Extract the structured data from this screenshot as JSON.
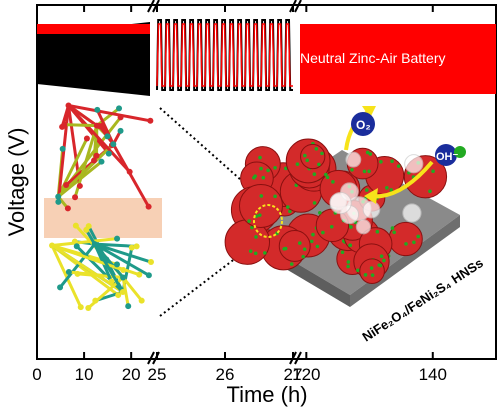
{
  "chart_data": {
    "type": "line",
    "title": "",
    "xlabel": "Time (h)",
    "ylabel": "Voltage (V)",
    "x_ticks": [
      {
        "segment": 0,
        "label": "0",
        "value": 0
      },
      {
        "segment": 0,
        "label": "10",
        "value": 10
      },
      {
        "segment": 0,
        "label": "20",
        "value": 20
      },
      {
        "segment": 1,
        "label": "25",
        "value": 25
      },
      {
        "segment": 1,
        "label": "26",
        "value": 26
      },
      {
        "segment": 1,
        "label": "27",
        "value": 27
      },
      {
        "segment": 2,
        "label": "120",
        "value": 120
      },
      {
        "segment": 2,
        "label": "140",
        "value": 140
      }
    ],
    "segments": [
      {
        "range": [
          0,
          24
        ],
        "style": "dense-cycling",
        "color": "#000000"
      },
      {
        "range": [
          25,
          27
        ],
        "style": "resolved-cycling",
        "color": "#000000",
        "cycles": 17
      },
      {
        "range": [
          119,
          150
        ],
        "style": "dense-cycling",
        "color": "#ff0000"
      }
    ],
    "broken_axis": true,
    "grid": false
  },
  "labels": {
    "battery": "Neutral Zinc-Air Battery",
    "catalyst": "NiFe₂O₄/FeNi₂S₄ HNSs",
    "o2": "O₂",
    "oh": "OH⁻"
  },
  "colors": {
    "series_black": "#000000",
    "series_red": "#ff0000",
    "particle_red": "#d32a2a",
    "particle_green": "#22aa22",
    "arrow_yellow": "#f7e31a",
    "substrate": "#8a8a8a"
  }
}
